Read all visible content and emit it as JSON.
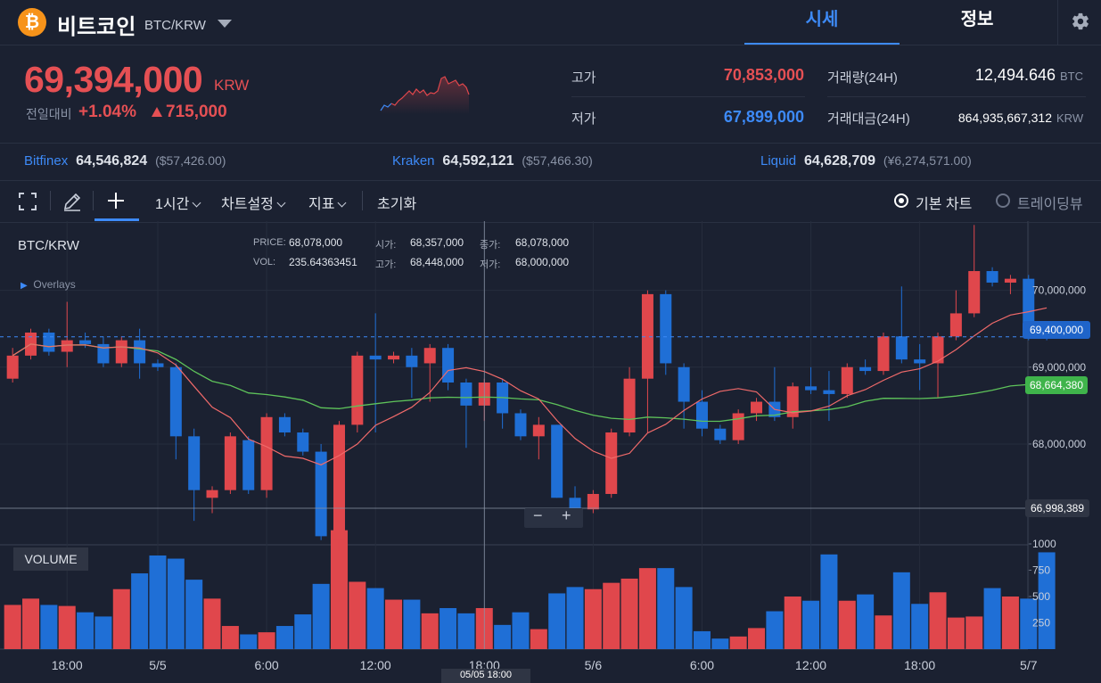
{
  "header": {
    "coin_symbol": "₿",
    "coin_name": "비트코인",
    "pair": "BTC/KRW",
    "tab_price": "시세",
    "tab_info": "정보"
  },
  "price": {
    "current": "69,394,000",
    "unit": "KRW",
    "change_label": "전일대비",
    "change_pct": "+1.04%",
    "change_amount": "715,000"
  },
  "stats": {
    "high_label": "고가",
    "high_value": "70,853,000",
    "low_label": "저가",
    "low_value": "67,899,000",
    "volume_label": "거래량(24H)",
    "volume_value": "12,494.646",
    "volume_unit": "BTC",
    "turnover_label": "거래대금(24H)",
    "turnover_value": "864,935,667,312",
    "turnover_unit": "KRW"
  },
  "exchanges": [
    {
      "name": "Bitfinex",
      "value": "64,546,824",
      "sub": "($57,426.00)"
    },
    {
      "name": "Kraken",
      "value": "64,592,121",
      "sub": "($57,466.30)"
    },
    {
      "name": "Liquid",
      "value": "64,628,709",
      "sub": "(¥6,274,571.00)"
    }
  ],
  "toolbar": {
    "interval": "1시간",
    "chart_settings": "차트설정",
    "indicators": "지표",
    "reset": "초기화",
    "basic_chart": "기본 차트",
    "tradingview": "트레이딩뷰"
  },
  "chart_info": {
    "symbol": "BTC/KRW",
    "overlays": "Overlays",
    "price_label": "PRICE:",
    "price_value": "68,078,000",
    "vol_label": "VOL:",
    "vol_value": "235.64363451",
    "open_label": "시가:",
    "open_value": "68,357,000",
    "high_label": "고가:",
    "high_value": "68,448,000",
    "close_label": "종가:",
    "close_value": "68,078,000",
    "low_label": "저가:",
    "low_value": "68,000,000",
    "current_tag": "69,400,000",
    "ma_tag": "68,664,380",
    "cursor_tag": "66,998,389",
    "cursor_time": "05/05 18:00",
    "volume_panel": "VOLUME"
  },
  "colors": {
    "up": "#e0474c",
    "down": "#1f6fd6",
    "ma_short": "#f06a6a",
    "ma_long": "#5ec35a"
  },
  "chart_data": {
    "type": "candlestick",
    "price_axis": {
      "min": 66700000,
      "max": 70900000,
      "ticks": [
        "70,000,000",
        "69,000,000",
        "68,000,000"
      ],
      "tick_values": [
        70000000,
        69000000,
        68000000
      ]
    },
    "volume_axis": {
      "ticks": [
        "1000",
        "750",
        "500",
        "250"
      ],
      "tick_values": [
        1000,
        750,
        500,
        250
      ]
    },
    "x_ticks": [
      "18:00",
      "5/5",
      "6:00",
      "12:00",
      "18:00",
      "5/6",
      "6:00",
      "12:00",
      "18:00",
      "5/7"
    ],
    "x_tick_index": [
      3,
      8,
      14,
      20,
      26,
      32,
      38,
      44,
      50,
      56
    ],
    "candles": [
      [
        68850000,
        69150000,
        68800000,
        69250000,
        420
      ],
      [
        69150000,
        69450000,
        69100000,
        69500000,
        480
      ],
      [
        69450000,
        69200000,
        69150000,
        69500000,
        420
      ],
      [
        69200000,
        69350000,
        69000000,
        69850000,
        410
      ],
      [
        69350000,
        69300000,
        69250000,
        69450000,
        350
      ],
      [
        69300000,
        69050000,
        69000000,
        69400000,
        310
      ],
      [
        69050000,
        69350000,
        69000000,
        69400000,
        570
      ],
      [
        69350000,
        69050000,
        68850000,
        69500000,
        720
      ],
      [
        69050000,
        69000000,
        68950000,
        69100000,
        890
      ],
      [
        69000000,
        68100000,
        67800000,
        69050000,
        860
      ],
      [
        68100000,
        67400000,
        67000000,
        68200000,
        660
      ],
      [
        67300000,
        67400000,
        67100000,
        67450000,
        480
      ],
      [
        67400000,
        68100000,
        67350000,
        68150000,
        220
      ],
      [
        68050000,
        67400000,
        67350000,
        68100000,
        140
      ],
      [
        67400000,
        68350000,
        67300000,
        68400000,
        160
      ],
      [
        68350000,
        68150000,
        68100000,
        68400000,
        220
      ],
      [
        68150000,
        67900000,
        67850000,
        68200000,
        330
      ],
      [
        67900000,
        66800000,
        66750000,
        68000000,
        620
      ],
      [
        66750000,
        68250000,
        66600000,
        68300000,
        1130
      ],
      [
        68250000,
        69150000,
        68150000,
        69200000,
        640
      ],
      [
        69150000,
        69100000,
        68150000,
        69700000,
        580
      ],
      [
        69100000,
        69150000,
        69050000,
        69200000,
        470
      ],
      [
        69150000,
        69000000,
        68600000,
        69250000,
        470
      ],
      [
        69050000,
        69250000,
        68550000,
        69300000,
        340
      ],
      [
        69250000,
        68800000,
        68700000,
        69300000,
        390
      ],
      [
        68800000,
        68500000,
        67950000,
        68850000,
        340
      ],
      [
        68500000,
        68800000,
        68300000,
        68850000,
        390
      ],
      [
        68800000,
        68400000,
        68200000,
        68850000,
        230
      ],
      [
        68400000,
        68100000,
        68050000,
        68450000,
        350
      ],
      [
        68100000,
        68250000,
        67800000,
        68350000,
        190
      ],
      [
        68250000,
        67300000,
        67300000,
        68250000,
        530
      ],
      [
        67300000,
        67150000,
        67100000,
        67450000,
        590
      ],
      [
        67150000,
        67350000,
        67100000,
        67400000,
        570
      ],
      [
        67350000,
        68150000,
        67300000,
        68200000,
        630
      ],
      [
        68150000,
        68850000,
        68100000,
        69000000,
        670
      ],
      [
        68850000,
        69950000,
        68150000,
        70000000,
        770
      ],
      [
        69950000,
        69050000,
        68900000,
        70000000,
        770
      ],
      [
        69000000,
        68550000,
        68200000,
        69050000,
        590
      ],
      [
        68550000,
        68200000,
        68100000,
        68700000,
        170
      ],
      [
        68200000,
        68050000,
        68000000,
        68250000,
        100
      ],
      [
        68050000,
        68400000,
        68000000,
        68450000,
        120
      ],
      [
        68400000,
        68550000,
        68300000,
        68600000,
        200
      ],
      [
        68550000,
        68350000,
        68300000,
        69000000,
        360
      ],
      [
        68350000,
        68750000,
        68200000,
        68800000,
        500
      ],
      [
        68750000,
        68700000,
        68650000,
        69000000,
        460
      ],
      [
        68700000,
        68650000,
        68300000,
        68950000,
        900
      ],
      [
        68650000,
        69000000,
        68600000,
        69050000,
        460
      ],
      [
        69000000,
        68950000,
        68900000,
        69100000,
        520
      ],
      [
        68950000,
        69400000,
        68900000,
        69450000,
        320
      ],
      [
        69400000,
        69100000,
        69050000,
        70050000,
        730
      ],
      [
        69100000,
        69050000,
        68700000,
        69300000,
        430
      ],
      [
        69050000,
        69400000,
        68600000,
        69450000,
        540
      ],
      [
        69400000,
        69700000,
        69350000,
        70000000,
        300
      ],
      [
        69700000,
        70250000,
        69650000,
        70850000,
        310
      ],
      [
        70250000,
        70100000,
        70050000,
        70300000,
        580
      ],
      [
        70100000,
        70150000,
        69950000,
        70200000,
        500
      ],
      [
        70150000,
        69400000,
        69350000,
        70200000,
        480
      ],
      [
        69400000,
        69394000,
        69350000,
        69450000,
        920
      ]
    ]
  }
}
